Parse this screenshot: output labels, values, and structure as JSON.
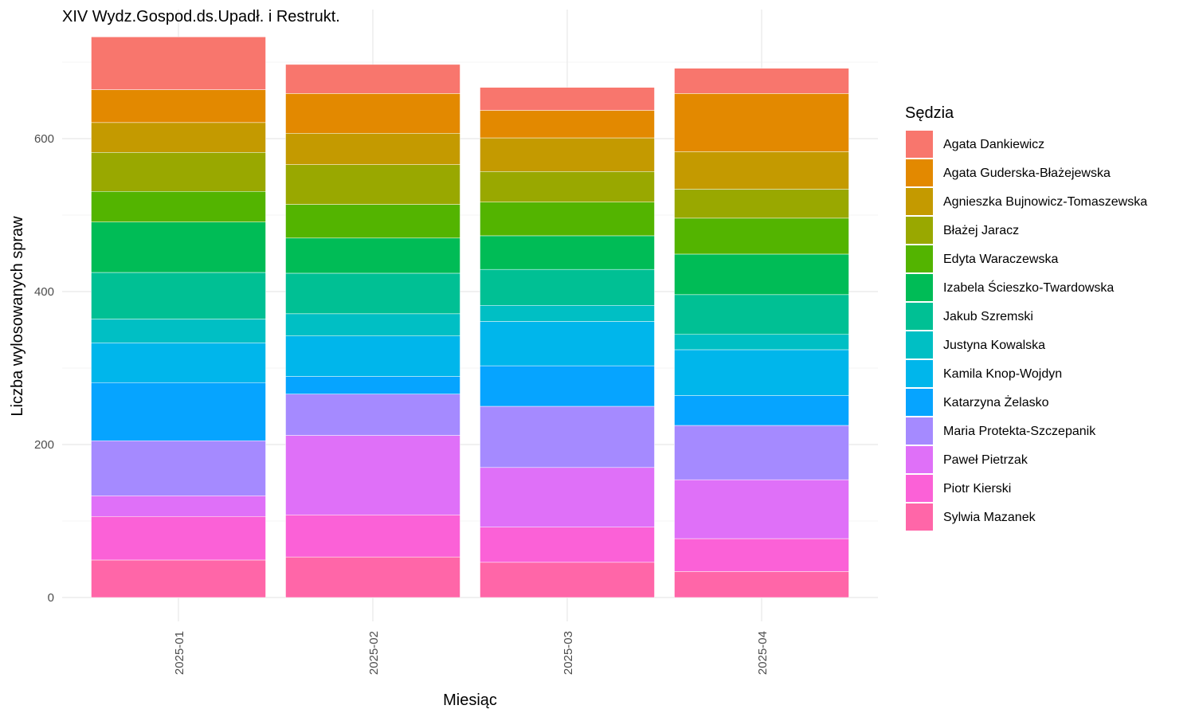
{
  "chart_data": {
    "type": "bar",
    "stacked": true,
    "title": "XIV Wydz.Gospod.ds.Upadł. i Restrukt.",
    "xlabel": "Miesiąc",
    "ylabel": "Liczba wylosowanych spraw",
    "categories": [
      "2025-01",
      "2025-02",
      "2025-03",
      "2025-04"
    ],
    "ylim": [
      0,
      740
    ],
    "yticks": [
      0,
      200,
      400,
      600
    ],
    "grid": true,
    "legend": {
      "title": "Sędzia",
      "position": "right"
    },
    "series": [
      {
        "name": "Agata Dankiewicz",
        "color": "#F8766D",
        "values": [
          69,
          38,
          30,
          33
        ]
      },
      {
        "name": "Agata Guderska-Błażejewska",
        "color": "#E38900",
        "values": [
          43,
          52,
          36,
          76
        ]
      },
      {
        "name": "Agnieszka Bujnowicz-Tomaszewska",
        "color": "#C49A00",
        "values": [
          39,
          41,
          44,
          49
        ]
      },
      {
        "name": "Błażej Jaracz",
        "color": "#99A800",
        "values": [
          51,
          52,
          40,
          38
        ]
      },
      {
        "name": "Edyta Waraczewska",
        "color": "#53B400",
        "values": [
          40,
          44,
          44,
          47
        ]
      },
      {
        "name": "Izabela Ścieszko-Twardowska",
        "color": "#00BC56",
        "values": [
          66,
          46,
          44,
          53
        ]
      },
      {
        "name": "Jakub Szremski",
        "color": "#00C094",
        "values": [
          61,
          53,
          47,
          52
        ]
      },
      {
        "name": "Justyna Kowalska",
        "color": "#00BFC4",
        "values": [
          31,
          29,
          21,
          20
        ]
      },
      {
        "name": "Kamila Knop-Wojdyn",
        "color": "#00B6EB",
        "values": [
          52,
          53,
          58,
          60
        ]
      },
      {
        "name": "Katarzyna Żelasko",
        "color": "#06A4FF",
        "values": [
          76,
          23,
          53,
          39
        ]
      },
      {
        "name": "Maria Protekta-Szczepanik",
        "color": "#A58AFF",
        "values": [
          72,
          54,
          80,
          71
        ]
      },
      {
        "name": "Paweł Pietrzak",
        "color": "#DF70F8",
        "values": [
          27,
          104,
          78,
          77
        ]
      },
      {
        "name": "Piotr Kierski",
        "color": "#FB61D7",
        "values": [
          57,
          55,
          46,
          43
        ]
      },
      {
        "name": "Sylwia Mazanek",
        "color": "#FF66A8",
        "values": [
          49,
          53,
          46,
          34
        ]
      }
    ]
  }
}
